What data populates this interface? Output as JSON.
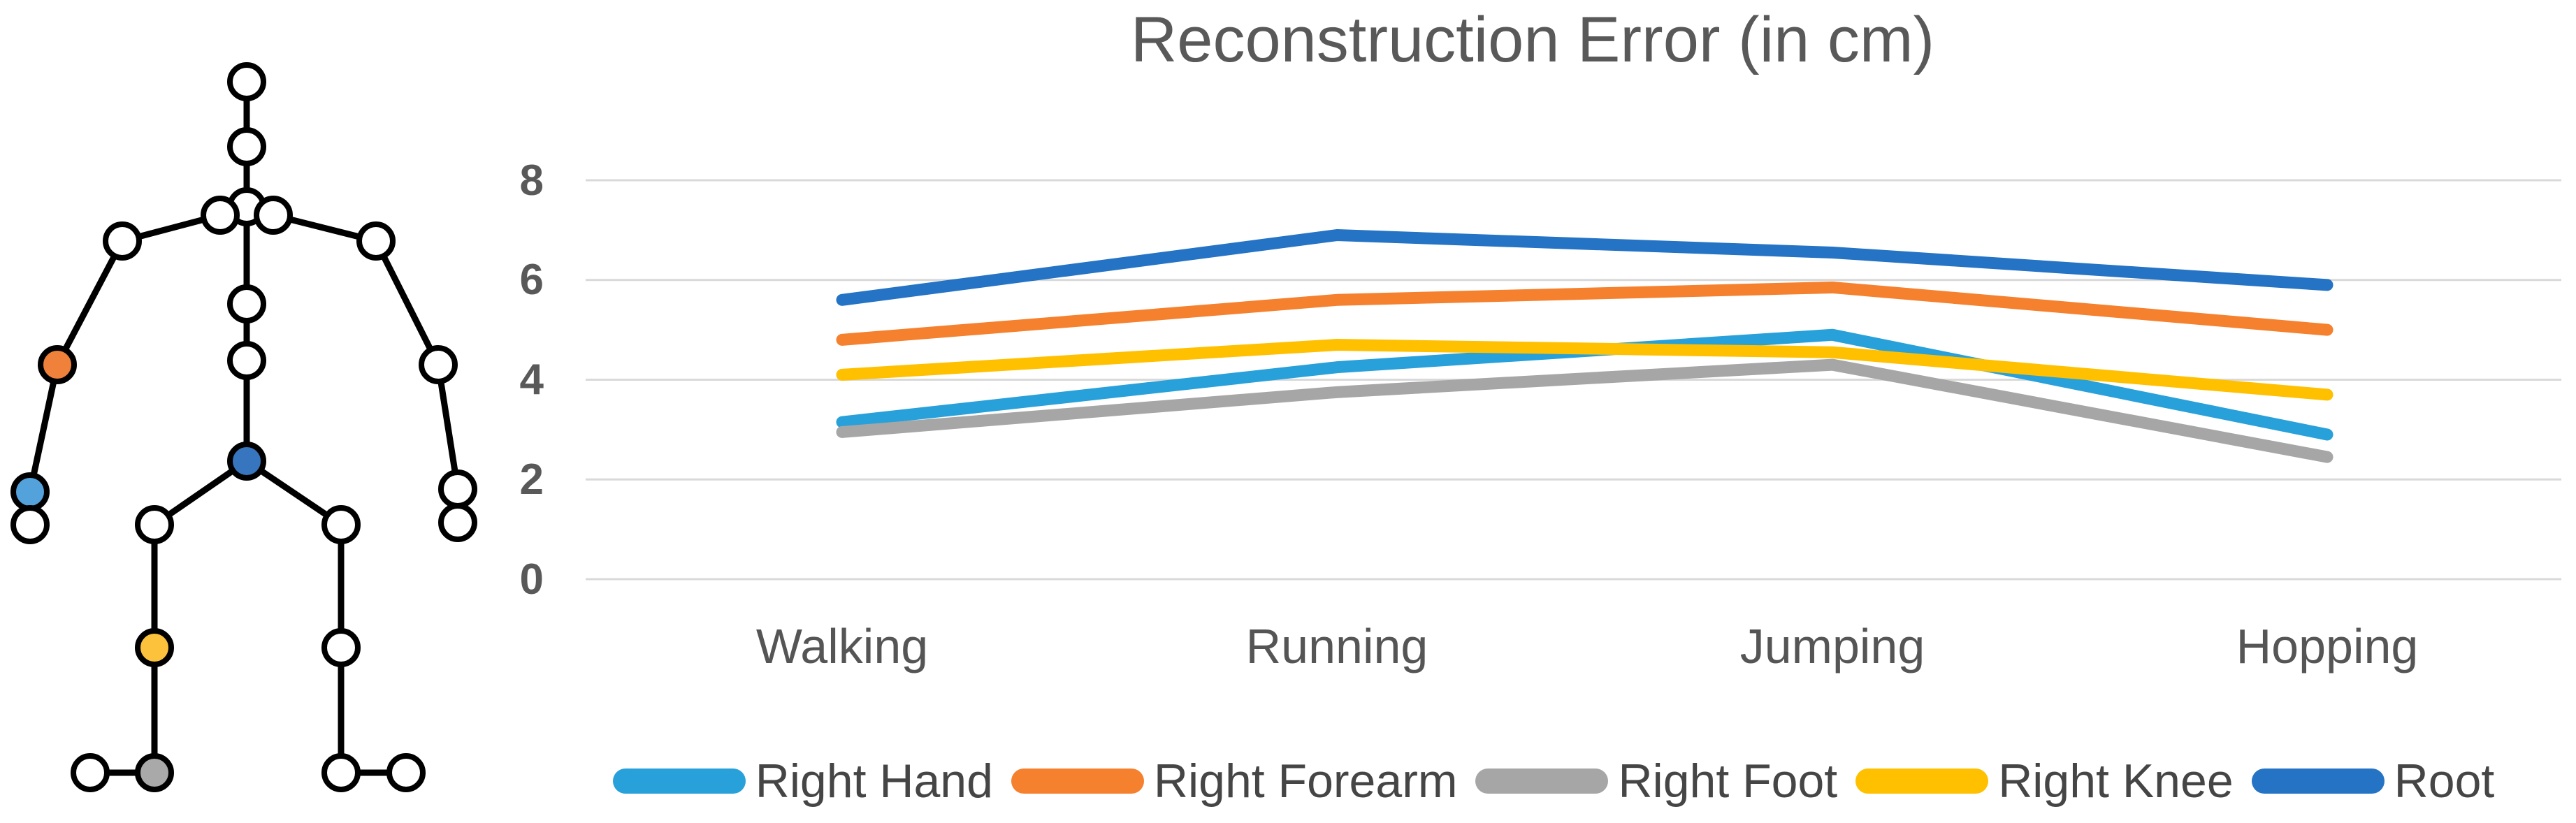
{
  "title": "Reconstruction Error (in cm)",
  "chart_data": {
    "type": "line",
    "title": "Reconstruction Error (in cm)",
    "categories": [
      "Walking",
      "Running",
      "Jumping",
      "Hopping"
    ],
    "series": [
      {
        "name": "Right Hand",
        "color": "#28A0DA",
        "values": [
          3.15,
          4.25,
          4.9,
          2.9
        ]
      },
      {
        "name": "Right Forearm",
        "color": "#F5802E",
        "values": [
          4.8,
          5.6,
          5.85,
          5.0
        ]
      },
      {
        "name": "Right Foot",
        "color": "#A6A6A6",
        "values": [
          2.95,
          3.75,
          4.3,
          2.45
        ]
      },
      {
        "name": "Right Knee",
        "color": "#FFC000",
        "values": [
          4.1,
          4.7,
          4.55,
          3.7
        ]
      },
      {
        "name": "Root",
        "color": "#2473C4",
        "values": [
          5.6,
          6.9,
          6.55,
          5.9
        ]
      }
    ],
    "xlabel": "",
    "ylabel": "",
    "ylim": [
      0,
      8
    ],
    "yticks": [
      8,
      6,
      4,
      2,
      0
    ],
    "grid": true,
    "legend_position": "bottom"
  },
  "skeleton": {
    "description": "stick-figure skeleton, person's right-side joints highlighted",
    "highlighted_joints": [
      {
        "joint": "right-elbow",
        "series": "Right Forearm",
        "color": "#F0813A"
      },
      {
        "joint": "right-wrist",
        "series": "Right Hand",
        "color": "#54A2DB"
      },
      {
        "joint": "root",
        "series": "Root",
        "color": "#3776BE"
      },
      {
        "joint": "right-knee",
        "series": "Right Knee",
        "color": "#FCC23C"
      },
      {
        "joint": "right-ankle",
        "series": "Right Foot",
        "color": "#A9A9A9"
      }
    ]
  },
  "colors": {
    "title_text": "#595959",
    "axis_text": "#595959",
    "legend_text": "#454545",
    "gridline": "#D9D9D9",
    "skeleton_stroke": "#000000",
    "joint_fill_default": "#FFFFFF"
  }
}
